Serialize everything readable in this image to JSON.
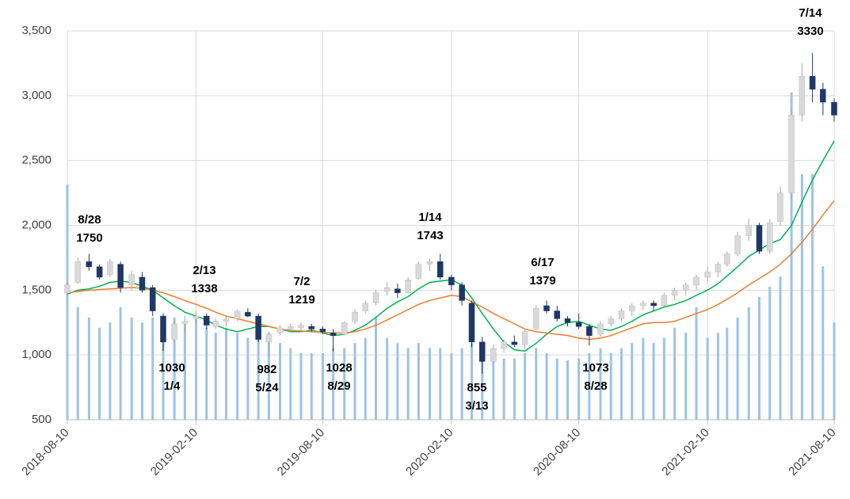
{
  "chart_data": {
    "type": "candlestick",
    "xlim": [
      "2018-08-10",
      "2021-08-10"
    ],
    "xticks": [
      "2018-08-10",
      "2019-02-10",
      "2019-08-10",
      "2020-02-10",
      "2020-08-10",
      "2021-02-10",
      "2021-08-10"
    ],
    "ylim": [
      500,
      3500
    ],
    "yticks": [
      500,
      {
        "value": 1000,
        "label": "1,000"
      },
      {
        "value": 1500,
        "label": "1,500"
      },
      {
        "value": 2000,
        "label": "2,000"
      },
      {
        "value": 2500,
        "label": "2,500"
      },
      {
        "value": 3000,
        "label": "3,000"
      },
      {
        "value": 3500,
        "label": "3,500"
      }
    ],
    "y2lim": [
      0,
      3800
    ],
    "grid": true,
    "up_color": "#d9d9d9",
    "down_color": "#1f3864",
    "volume_color": "#9dc3e6",
    "x": [
      "2018-08-10",
      "2018-08-25",
      "2018-09-10",
      "2018-09-25",
      "2018-10-10",
      "2018-10-25",
      "2018-11-10",
      "2018-11-25",
      "2018-12-10",
      "2018-12-25",
      "2019-01-10",
      "2019-01-25",
      "2019-02-10",
      "2019-02-25",
      "2019-03-10",
      "2019-03-25",
      "2019-04-10",
      "2019-04-25",
      "2019-05-10",
      "2019-05-25",
      "2019-06-10",
      "2019-06-25",
      "2019-07-10",
      "2019-07-25",
      "2019-08-10",
      "2019-08-25",
      "2019-09-10",
      "2019-09-25",
      "2019-10-10",
      "2019-10-25",
      "2019-11-10",
      "2019-11-25",
      "2019-12-10",
      "2019-12-25",
      "2020-01-10",
      "2020-01-25",
      "2020-02-10",
      "2020-02-25",
      "2020-03-10",
      "2020-03-25",
      "2020-04-10",
      "2020-04-25",
      "2020-05-10",
      "2020-05-25",
      "2020-06-10",
      "2020-06-25",
      "2020-07-10",
      "2020-07-25",
      "2020-08-10",
      "2020-08-25",
      "2020-09-10",
      "2020-09-25",
      "2020-10-10",
      "2020-10-25",
      "2020-11-10",
      "2020-11-25",
      "2020-12-10",
      "2020-12-25",
      "2021-01-10",
      "2021-01-25",
      "2021-02-10",
      "2021-02-25",
      "2021-03-10",
      "2021-03-25",
      "2021-04-10",
      "2021-04-25",
      "2021-05-10",
      "2021-05-25",
      "2021-06-10",
      "2021-06-25",
      "2021-07-10",
      "2021-07-25",
      "2021-08-10"
    ],
    "open": [
      1480,
      1560,
      1720,
      1680,
      1620,
      1700,
      1540,
      1600,
      1520,
      1300,
      1120,
      1240,
      1280,
      1300,
      1220,
      1260,
      1280,
      1330,
      1300,
      1100,
      1170,
      1200,
      1210,
      1220,
      1200,
      1170,
      1160,
      1260,
      1340,
      1400,
      1490,
      1510,
      1480,
      1590,
      1700,
      1720,
      1600,
      1540,
      1400,
      1100,
      950,
      1050,
      1100,
      1080,
      1200,
      1380,
      1340,
      1280,
      1250,
      1220,
      1160,
      1240,
      1280,
      1340,
      1380,
      1400,
      1380,
      1460,
      1500,
      1540,
      1600,
      1640,
      1700,
      1780,
      1920,
      2000,
      1800,
      2030,
      2250,
      2850,
      3150,
      3050,
      2950
    ],
    "high": [
      1560,
      1750,
      1780,
      1700,
      1740,
      1720,
      1650,
      1640,
      1540,
      1320,
      1260,
      1300,
      1338,
      1320,
      1280,
      1300,
      1350,
      1360,
      1320,
      1180,
      1230,
      1240,
      1250,
      1240,
      1220,
      1200,
      1260,
      1350,
      1420,
      1500,
      1560,
      1550,
      1600,
      1720,
      1743,
      1780,
      1620,
      1560,
      1420,
      1140,
      1080,
      1120,
      1150,
      1200,
      1380,
      1420,
      1380,
      1300,
      1320,
      1240,
      1260,
      1300,
      1360,
      1400,
      1420,
      1420,
      1480,
      1520,
      1560,
      1620,
      1680,
      1720,
      1800,
      1950,
      2050,
      2020,
      2050,
      2300,
      2900,
      3250,
      3330,
      3100,
      2980
    ],
    "low": [
      1460,
      1550,
      1650,
      1580,
      1600,
      1480,
      1500,
      1480,
      1300,
      1030,
      1100,
      1180,
      1250,
      1200,
      1200,
      1220,
      1260,
      1290,
      1100,
      982,
      1150,
      1180,
      1190,
      1180,
      1160,
      1028,
      1150,
      1240,
      1320,
      1380,
      1460,
      1440,
      1470,
      1580,
      1650,
      1580,
      1500,
      1380,
      1060,
      855,
      930,
      1020,
      1060,
      1050,
      1190,
      1320,
      1260,
      1220,
      1200,
      1073,
      1140,
      1220,
      1260,
      1300,
      1350,
      1340,
      1370,
      1420,
      1460,
      1500,
      1560,
      1600,
      1680,
      1760,
      1880,
      1780,
      1780,
      2000,
      2200,
      2800,
      2950,
      2850,
      2800
    ],
    "close": [
      1540,
      1720,
      1680,
      1600,
      1720,
      1520,
      1620,
      1500,
      1340,
      1100,
      1240,
      1260,
      1300,
      1230,
      1260,
      1280,
      1340,
      1300,
      1120,
      1160,
      1210,
      1220,
      1230,
      1200,
      1180,
      1150,
      1250,
      1330,
      1400,
      1480,
      1520,
      1480,
      1580,
      1700,
      1720,
      1600,
      1540,
      1420,
      1100,
      950,
      1050,
      1100,
      1080,
      1180,
      1360,
      1340,
      1280,
      1250,
      1220,
      1150,
      1240,
      1280,
      1340,
      1380,
      1400,
      1380,
      1460,
      1500,
      1540,
      1600,
      1640,
      1700,
      1780,
      1920,
      2000,
      1800,
      2020,
      2250,
      2850,
      3150,
      3050,
      2950,
      2850
    ],
    "volume": [
      2300,
      1100,
      1000,
      900,
      950,
      1100,
      1000,
      950,
      1000,
      1000,
      1000,
      950,
      1000,
      900,
      850,
      900,
      850,
      800,
      900,
      850,
      750,
      700,
      650,
      650,
      650,
      700,
      700,
      750,
      800,
      1000,
      800,
      750,
      700,
      750,
      700,
      700,
      650,
      700,
      750,
      700,
      650,
      600,
      600,
      650,
      700,
      650,
      600,
      580,
      600,
      650,
      700,
      650,
      700,
      750,
      800,
      750,
      800,
      900,
      850,
      1100,
      800,
      850,
      900,
      1000,
      1100,
      1200,
      1300,
      1400,
      3200,
      2400,
      2400,
      1500,
      950
    ],
    "series": [
      {
        "color": "#00b050",
        "values": [
          1470,
          1500,
          1510,
          1530,
          1560,
          1570,
          1560,
          1530,
          1500,
          1440,
          1380,
          1330,
          1300,
          1270,
          1230,
          1200,
          1180,
          1200,
          1220,
          1220,
          1200,
          1180,
          1180,
          1190,
          1170,
          1150,
          1160,
          1190,
          1230,
          1290,
          1360,
          1410,
          1450,
          1510,
          1560,
          1570,
          1580,
          1540,
          1440,
          1320,
          1200,
          1100,
          1040,
          1030,
          1090,
          1160,
          1220,
          1250,
          1260,
          1230,
          1200,
          1190,
          1220,
          1260,
          1310,
          1340,
          1370,
          1390,
          1420,
          1460,
          1500,
          1550,
          1610,
          1680,
          1760,
          1810,
          1860,
          1890,
          2000,
          2180,
          2350,
          2500,
          2650
        ]
      },
      {
        "color": "#ed7d31",
        "values": [
          1480,
          1490,
          1500,
          1505,
          1510,
          1515,
          1520,
          1515,
          1500,
          1480,
          1450,
          1420,
          1390,
          1360,
          1330,
          1300,
          1280,
          1260,
          1240,
          1220,
          1200,
          1190,
          1185,
          1180,
          1175,
          1170,
          1170,
          1180,
          1200,
          1230,
          1270,
          1310,
          1350,
          1390,
          1420,
          1440,
          1460,
          1450,
          1410,
          1370,
          1320,
          1280,
          1240,
          1200,
          1180,
          1170,
          1160,
          1150,
          1130,
          1120,
          1130,
          1150,
          1180,
          1210,
          1240,
          1250,
          1250,
          1260,
          1290,
          1320,
          1350,
          1390,
          1430,
          1480,
          1540,
          1590,
          1640,
          1700,
          1780,
          1870,
          1970,
          2080,
          2190
        ]
      }
    ],
    "annotations": [
      {
        "date": "8/28",
        "value": 1750
      },
      {
        "date": "2/13",
        "value": 1338
      },
      {
        "date": "7/2",
        "value": 1219
      },
      {
        "date": "1/14",
        "value": 1743
      },
      {
        "date": "6/17",
        "value": 1379
      },
      {
        "date": "7/14",
        "value": 3330
      },
      {
        "date": "1/4",
        "value": 1030
      },
      {
        "date": "5/24",
        "value": 982
      },
      {
        "date": "8/29",
        "value": 1028
      },
      {
        "date": "3/13",
        "value": 855
      },
      {
        "date": "8/28",
        "value": 1073
      }
    ]
  }
}
